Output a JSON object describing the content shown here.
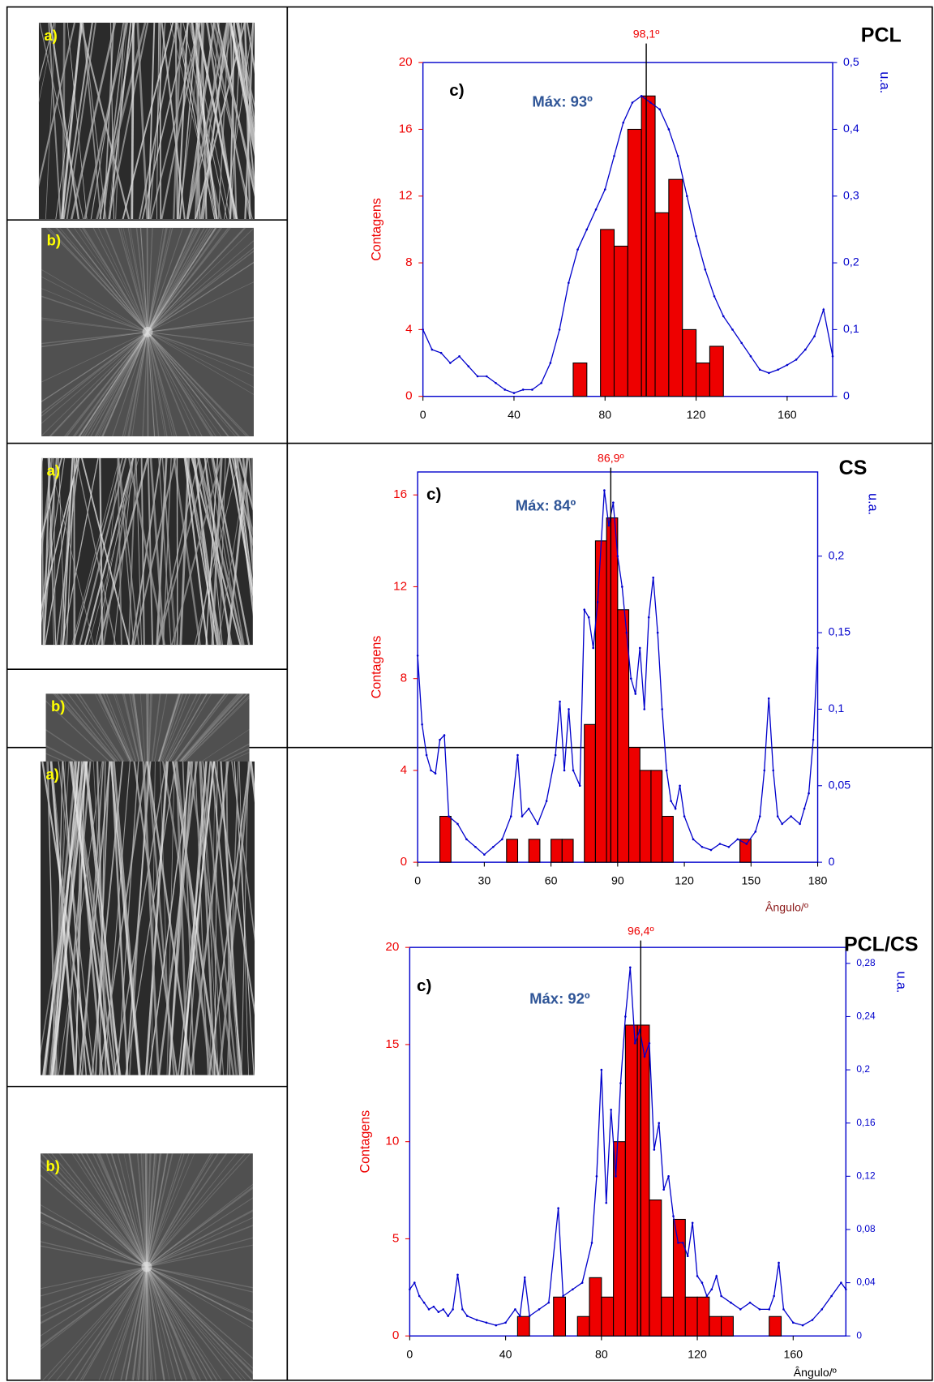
{
  "image_labels": [
    "a)",
    "b)",
    "a)",
    "b)",
    "a)",
    "b)"
  ],
  "chart_data": [
    {
      "type": "histogram",
      "title": "PCL",
      "panel_label": "c)",
      "annotation": "Máx: 93º",
      "marker": {
        "value": 98.1,
        "label": "98,1º"
      },
      "y_label": "Contagens",
      "y2_label": "u.a.",
      "xlim": [
        0,
        180
      ],
      "xticks": [
        0,
        40,
        80,
        120,
        160
      ],
      "ylim": [
        0,
        20
      ],
      "yticks": [
        0,
        4,
        8,
        12,
        16,
        20
      ],
      "y2lim": [
        0,
        0.5
      ],
      "y2ticks": [
        0,
        {
          "value": 0.1,
          "label": "0,1"
        },
        {
          "value": 0.2,
          "label": "0,2"
        },
        {
          "value": 0.3,
          "label": "0,3"
        },
        {
          "value": 0.4,
          "label": "0,4"
        },
        {
          "value": 0.5,
          "label": "0,5"
        }
      ],
      "bins": [
        66,
        72,
        78,
        84,
        90,
        96,
        102,
        108,
        114,
        120,
        126,
        132
      ],
      "counts": [
        2,
        0,
        10,
        9,
        16,
        18,
        11,
        13,
        4,
        2,
        3
      ],
      "color": "#ee0000",
      "line": {
        "axis": "y2",
        "color": "#0000cc",
        "x": [
          0,
          4,
          8,
          12,
          16,
          20,
          24,
          28,
          32,
          36,
          40,
          44,
          48,
          52,
          56,
          60,
          64,
          68,
          72,
          76,
          80,
          84,
          88,
          92,
          96,
          100,
          104,
          108,
          112,
          116,
          120,
          124,
          128,
          132,
          136,
          140,
          144,
          148,
          152,
          156,
          160,
          164,
          168,
          172,
          176,
          180
        ],
        "values": [
          0.1,
          0.07,
          0.065,
          0.05,
          0.06,
          0.045,
          0.03,
          0.03,
          0.02,
          0.01,
          0.005,
          0.01,
          0.01,
          0.02,
          0.05,
          0.1,
          0.17,
          0.22,
          0.25,
          0.28,
          0.31,
          0.36,
          0.41,
          0.44,
          0.45,
          0.44,
          0.43,
          0.4,
          0.36,
          0.3,
          0.24,
          0.19,
          0.15,
          0.12,
          0.1,
          0.08,
          0.06,
          0.04,
          0.035,
          0.04,
          0.047,
          0.055,
          0.07,
          0.09,
          0.13,
          0.06
        ]
      }
    },
    {
      "type": "histogram",
      "title": "CS",
      "panel_label": "c)",
      "annotation": "Máx: 84º",
      "marker": {
        "value": 86.9,
        "label": "86,9º"
      },
      "y_label": "Contagens",
      "y2_label": "u.a.",
      "x_label": "Ângulo/º",
      "x_label_color": "#8b1a1a",
      "xlim": [
        0,
        180
      ],
      "xticks": [
        0,
        30,
        60,
        90,
        120,
        150,
        180
      ],
      "ylim": [
        0,
        17
      ],
      "yticks": [
        0,
        4,
        8,
        12,
        16
      ],
      "y2lim": [
        0,
        0.255
      ],
      "y2ticks": [
        0,
        {
          "value": 0.05,
          "label": "0,05"
        },
        {
          "value": 0.1,
          "label": "0,1"
        },
        {
          "value": 0.15,
          "label": "0,15"
        },
        {
          "value": 0.2,
          "label": "0,2"
        }
      ],
      "bins": [
        10,
        15,
        20,
        25,
        30,
        35,
        40,
        45,
        50,
        55,
        60,
        65,
        70,
        75,
        80,
        85,
        90,
        95,
        100,
        105,
        110,
        115,
        120,
        125,
        130,
        135,
        140,
        145,
        150
      ],
      "counts": [
        2,
        0,
        0,
        0,
        0,
        0,
        1,
        0,
        1,
        0,
        1,
        1,
        0,
        6,
        14,
        15,
        11,
        5,
        4,
        4,
        2,
        0,
        0,
        0,
        0,
        0,
        0,
        1
      ],
      "color": "#ee0000",
      "line": {
        "axis": "y2",
        "color": "#0000cc",
        "x": [
          0,
          2,
          4,
          6,
          8,
          10,
          12,
          14,
          18,
          22,
          26,
          30,
          34,
          38,
          42,
          45,
          47,
          50,
          54,
          58,
          62,
          64,
          66,
          68,
          70,
          73,
          75,
          77,
          79,
          81,
          84,
          86,
          88,
          90,
          92,
          94,
          96,
          98,
          100,
          102,
          104,
          106,
          108,
          110,
          112,
          114,
          116,
          118,
          120,
          124,
          128,
          132,
          136,
          140,
          144,
          148,
          152,
          154,
          156,
          158,
          160,
          162,
          164,
          168,
          172,
          174,
          176,
          178,
          180
        ],
        "values": [
          0.135,
          0.09,
          0.07,
          0.06,
          0.058,
          0.08,
          0.083,
          0.03,
          0.025,
          0.015,
          0.01,
          0.005,
          0.01,
          0.015,
          0.03,
          0.07,
          0.03,
          0.035,
          0.025,
          0.04,
          0.07,
          0.105,
          0.06,
          0.1,
          0.06,
          0.05,
          0.165,
          0.16,
          0.14,
          0.17,
          0.243,
          0.22,
          0.235,
          0.2,
          0.18,
          0.15,
          0.12,
          0.11,
          0.14,
          0.1,
          0.16,
          0.186,
          0.15,
          0.1,
          0.06,
          0.04,
          0.035,
          0.05,
          0.03,
          0.015,
          0.01,
          0.008,
          0.012,
          0.01,
          0.015,
          0.012,
          0.02,
          0.03,
          0.06,
          0.107,
          0.06,
          0.03,
          0.025,
          0.03,
          0.025,
          0.035,
          0.045,
          0.08,
          0.14
        ]
      }
    },
    {
      "type": "histogram",
      "title": "PCL/CS",
      "panel_label": "c)",
      "annotation": "Máx: 92º",
      "marker": {
        "value": 96.4,
        "label": "96,4º"
      },
      "y_label": "Contagens",
      "y2_label": "u.a.",
      "x_label": "Ângulo/º",
      "x_label_color": "#000000",
      "xlim": [
        0,
        182
      ],
      "xticks": [
        0,
        40,
        80,
        120,
        160
      ],
      "ylim": [
        0,
        20
      ],
      "yticks": [
        0,
        5,
        10,
        15,
        20
      ],
      "y2lim": [
        0,
        0.292
      ],
      "y2ticks": [
        0,
        {
          "value": 0.04,
          "label": "0,04"
        },
        {
          "value": 0.08,
          "label": "0,08"
        },
        {
          "value": 0.12,
          "label": "0,12"
        },
        {
          "value": 0.16,
          "label": "0,16"
        },
        {
          "value": 0.2,
          "label": "0,2"
        },
        {
          "value": 0.24,
          "label": "0,24"
        },
        {
          "value": 0.28,
          "label": "0,28"
        }
      ],
      "bins": [
        45,
        50,
        55,
        60,
        65,
        70,
        75,
        80,
        85,
        90,
        95,
        100,
        105,
        110,
        115,
        120,
        125,
        130,
        135,
        140,
        145,
        150,
        155
      ],
      "counts": [
        1,
        0,
        0,
        2,
        0,
        1,
        3,
        2,
        10,
        16,
        16,
        7,
        2,
        6,
        2,
        2,
        1,
        1,
        0,
        0,
        0,
        1
      ],
      "color": "#ee0000",
      "line": {
        "axis": "y2",
        "color": "#0000cc",
        "x": [
          0,
          2,
          4,
          6,
          8,
          10,
          12,
          14,
          16,
          18,
          20,
          22,
          24,
          28,
          32,
          36,
          40,
          44,
          46,
          48,
          50,
          54,
          58,
          62,
          64,
          68,
          72,
          76,
          78,
          80,
          82,
          84,
          86,
          88,
          90,
          92,
          94,
          96,
          98,
          100,
          102,
          104,
          106,
          108,
          110,
          112,
          114,
          116,
          118,
          120,
          122,
          124,
          126,
          128,
          130,
          134,
          138,
          142,
          146,
          150,
          152,
          154,
          156,
          160,
          164,
          168,
          172,
          176,
          180,
          182
        ],
        "values": [
          0.035,
          0.04,
          0.03,
          0.025,
          0.02,
          0.022,
          0.018,
          0.02,
          0.015,
          0.02,
          0.046,
          0.02,
          0.015,
          0.012,
          0.01,
          0.008,
          0.01,
          0.02,
          0.015,
          0.044,
          0.015,
          0.02,
          0.025,
          0.096,
          0.03,
          0.035,
          0.04,
          0.07,
          0.12,
          0.2,
          0.1,
          0.17,
          0.12,
          0.19,
          0.24,
          0.277,
          0.22,
          0.23,
          0.21,
          0.22,
          0.14,
          0.16,
          0.11,
          0.12,
          0.09,
          0.07,
          0.07,
          0.06,
          0.085,
          0.045,
          0.04,
          0.03,
          0.035,
          0.045,
          0.03,
          0.025,
          0.02,
          0.025,
          0.02,
          0.02,
          0.03,
          0.055,
          0.02,
          0.01,
          0.008,
          0.012,
          0.02,
          0.03,
          0.04,
          0.035
        ]
      }
    }
  ]
}
